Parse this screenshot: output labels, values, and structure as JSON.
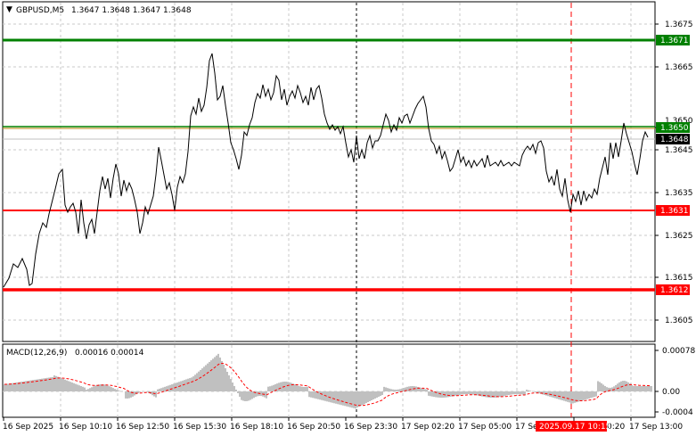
{
  "header": {
    "symbol": "GBPUSD,M5",
    "ohlc": "1.3647 1.3648 1.3647 1.3648"
  },
  "macd": {
    "label": "MACD(12,26,9)",
    "values": "0.00016 0.00014",
    "ticks": [
      "0.00078",
      "0.00",
      "-0.0004"
    ]
  },
  "price_axis": {
    "ticks": [
      "1.3675",
      "1.3665",
      "1.3650",
      "1.3645",
      "1.3635",
      "1.3625",
      "1.3615",
      "1.3605"
    ]
  },
  "levels": [
    {
      "value": "1.3671",
      "color": "#008000"
    },
    {
      "value": "1.3650",
      "color": "#008000"
    },
    {
      "value": "1.3631",
      "color": "#ff0000"
    },
    {
      "value": "1.3612",
      "color": "#ff0000"
    }
  ],
  "current_price": "1.3648",
  "time_axis": {
    "labels": [
      "16 Sep 2025",
      "16 Sep 10:10",
      "16 Sep 12:50",
      "16 Sep 15:30",
      "16 Sep 18:10",
      "16 Sep 20:50",
      "16 Sep 23:30",
      "17 Sep 02:20",
      "17 Sep 05:00",
      "17 Sep 0",
      "0:20",
      "17 Sep 13:00"
    ],
    "highlight": "2025.09.17 10:15"
  },
  "colors": {
    "background": "#ffffff",
    "price_line": "#000000",
    "support": "#ff0000",
    "resistance": "#008000",
    "macd_hist": "#c0c0c0",
    "macd_signal": "#ff0000"
  }
}
